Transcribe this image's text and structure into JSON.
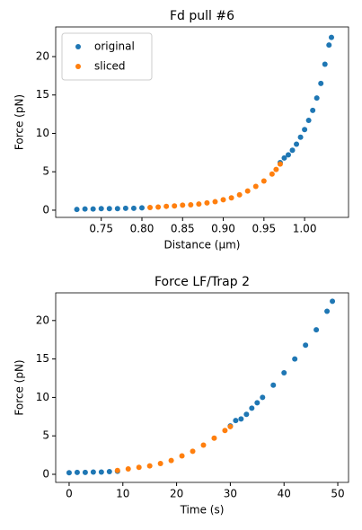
{
  "chart_data": [
    {
      "type": "scatter",
      "title": "Fd pull #6",
      "xlabel": "Distance (μm)",
      "ylabel": "Force (pN)",
      "legend": "upper left",
      "xlim": [
        0.694,
        1.054
      ],
      "ylim": [
        -0.94,
        23.86
      ],
      "xticks": [
        0.75,
        {
          "value": 0.8,
          "label": "0.80"
        },
        0.85,
        {
          "value": 0.9,
          "label": "0.90"
        },
        0.95,
        {
          "value": 1.0,
          "label": "1.00"
        }
      ],
      "yticks": [
        0,
        5,
        10,
        15,
        20
      ],
      "series": [
        {
          "name": "original",
          "color": "#1f77b4",
          "x": [
            0.72,
            0.73,
            0.74,
            0.75,
            0.76,
            0.77,
            0.78,
            0.79,
            0.8,
            0.97,
            0.975,
            0.98,
            0.985,
            0.99,
            0.995,
            1.0,
            1.005,
            1.01,
            1.015,
            1.02,
            1.025,
            1.03,
            1.033
          ],
          "values": [
            0.1,
            0.15,
            0.15,
            0.2,
            0.2,
            0.2,
            0.25,
            0.25,
            0.3,
            6.2,
            6.8,
            7.2,
            7.8,
            8.6,
            9.5,
            10.5,
            11.7,
            13,
            14.6,
            16.5,
            19,
            21.5,
            22.5
          ]
        },
        {
          "name": "sliced",
          "color": "#ff7f0e",
          "x": [
            0.81,
            0.82,
            0.83,
            0.84,
            0.85,
            0.86,
            0.87,
            0.88,
            0.89,
            0.9,
            0.91,
            0.92,
            0.93,
            0.94,
            0.95,
            0.96,
            0.965,
            0.97
          ],
          "values": [
            0.35,
            0.4,
            0.5,
            0.55,
            0.65,
            0.7,
            0.8,
            0.95,
            1.1,
            1.35,
            1.6,
            2.0,
            2.5,
            3.1,
            3.8,
            4.7,
            5.3,
            6.0
          ]
        }
      ]
    },
    {
      "type": "scatter",
      "title": "Force LF/Trap 2",
      "xlabel": "Time (s)",
      "ylabel": "Force (pN)",
      "xlim": [
        -2.5,
        52.0
      ],
      "ylim": [
        -1.05,
        23.6
      ],
      "xticks": [
        0,
        10,
        20,
        30,
        40,
        50
      ],
      "yticks": [
        0,
        5,
        10,
        15,
        20
      ],
      "series": [
        {
          "name": "original",
          "color": "#1f77b4",
          "x": [
            0,
            1.5,
            3,
            4.5,
            6,
            7.5,
            9,
            30,
            31,
            32,
            33,
            34,
            35,
            36,
            38,
            40,
            42,
            44,
            46,
            48,
            49
          ],
          "values": [
            0.2,
            0.25,
            0.25,
            0.3,
            0.3,
            0.35,
            0.4,
            6.3,
            7,
            7.2,
            7.8,
            8.6,
            9.3,
            10.0,
            11.6,
            13.2,
            15,
            16.8,
            18.8,
            21.2,
            22.5
          ]
        },
        {
          "name": "sliced",
          "color": "#ff7f0e",
          "x": [
            9,
            11,
            13,
            15,
            17,
            19,
            21,
            23,
            25,
            27,
            29,
            30
          ],
          "values": [
            0.5,
            0.7,
            0.9,
            1.1,
            1.4,
            1.8,
            2.4,
            3.0,
            3.8,
            4.7,
            5.7,
            6.2
          ]
        }
      ]
    }
  ]
}
